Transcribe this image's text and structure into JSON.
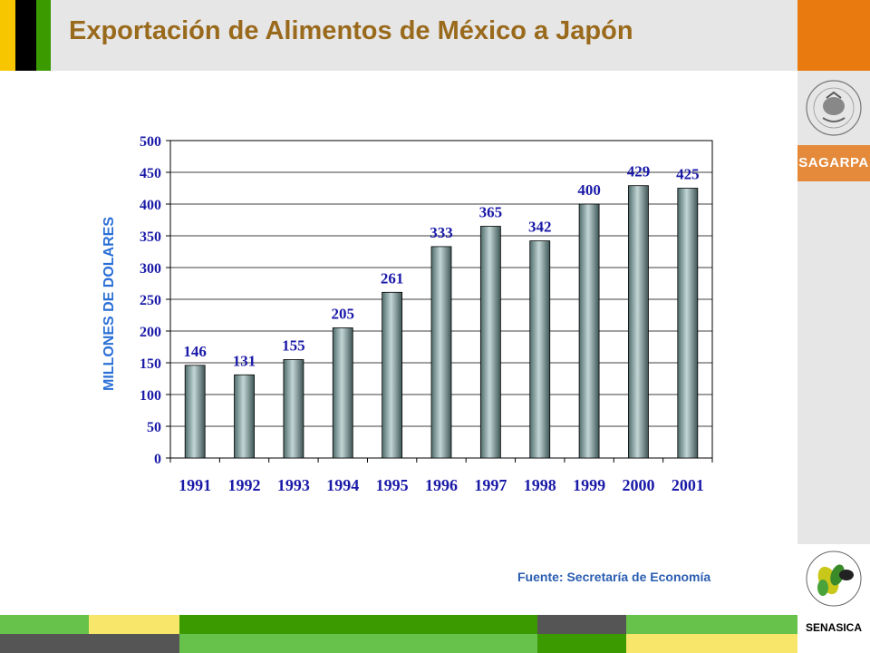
{
  "slide": {
    "title": "Exportación de Alimentos de México a Japón",
    "source": "Fuente: Secretaría de Economía"
  },
  "sidebar": {
    "brand": "SAGARPA",
    "agency": "SENASICA"
  },
  "colors": {
    "header_bg": "#e6e6e6",
    "title": "#9a6a1c",
    "accent_orange": "#e87a10",
    "accent_green": "#3a9a00",
    "accent_yellow": "#f7e66a",
    "light_green": "#66c24a",
    "dark_gray": "#555555",
    "axis_text": "#1a1aa8",
    "ylabel": "#2a6fd6",
    "bar_fill": "#6f8f8f"
  },
  "chart_data": {
    "type": "bar",
    "categories": [
      "1991",
      "1992",
      "1993",
      "1994",
      "1995",
      "1996",
      "1997",
      "1998",
      "1999",
      "2000",
      "2001"
    ],
    "values": [
      146,
      131,
      155,
      205,
      261,
      333,
      365,
      342,
      400,
      429,
      425
    ],
    "title": "",
    "xlabel": "",
    "ylabel": "MILLONES DE DOLARES",
    "ylim": [
      0,
      500
    ],
    "yticks": [
      0,
      50,
      100,
      150,
      200,
      250,
      300,
      350,
      400,
      450,
      500
    ],
    "grid": true,
    "legend": "none",
    "data_labels": true
  }
}
